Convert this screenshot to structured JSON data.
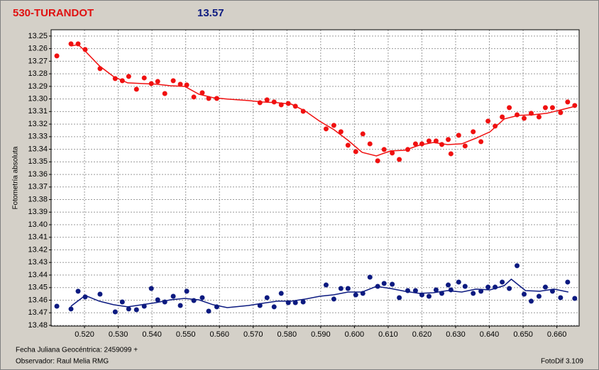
{
  "header": {
    "title": "530-TURANDOT",
    "magnitude": "13.57"
  },
  "chart_data": {
    "type": "scatter",
    "ylabel": "Fotometría absoluta",
    "xlabel": "Fecha Juliana Geocéntrica: 2459099 +",
    "xlim": [
      0.5101,
      0.6666
    ],
    "ylim": [
      13.245,
      13.48
    ],
    "y_inverted": true,
    "grid": true,
    "xticks": [
      {
        "value": 0.52,
        "label": "0.520"
      },
      {
        "value": 0.53,
        "label": "0.530"
      },
      {
        "value": 0.54,
        "label": "0.540"
      },
      {
        "value": 0.55,
        "label": "0.550"
      },
      {
        "value": 0.56,
        "label": "0.560"
      },
      {
        "value": 0.57,
        "label": "0.570"
      },
      {
        "value": 0.58,
        "label": "0.580"
      },
      {
        "value": 0.59,
        "label": "0.590"
      },
      {
        "value": 0.6,
        "label": "0.600"
      },
      {
        "value": 0.61,
        "label": "0.610"
      },
      {
        "value": 0.62,
        "label": "0.620"
      },
      {
        "value": 0.63,
        "label": "0.630"
      },
      {
        "value": 0.64,
        "label": "0.640"
      },
      {
        "value": 0.65,
        "label": "0.650"
      },
      {
        "value": 0.66,
        "label": "0.660"
      }
    ],
    "yticks": [
      13.25,
      13.26,
      13.27,
      13.28,
      13.29,
      {
        "value": 13.3,
        "label": "13.30"
      },
      13.31,
      13.32,
      13.33,
      13.34,
      13.35,
      13.36,
      13.37,
      13.38,
      13.39,
      {
        "value": 13.4,
        "label": "13.40"
      },
      13.41,
      13.42,
      13.43,
      13.44,
      13.45,
      13.46,
      13.47,
      13.48
    ],
    "x": [
      0.5118,
      0.516,
      0.5181,
      0.5202,
      0.5246,
      0.5291,
      0.5312,
      0.5331,
      0.5354,
      0.5377,
      0.5398,
      0.5417,
      0.5438,
      0.5463,
      0.5484,
      0.5503,
      0.5524,
      0.5549,
      0.5568,
      0.5592,
      0.572,
      0.5741,
      0.5762,
      0.5783,
      0.5804,
      0.5825,
      0.5848,
      0.5916,
      0.5939,
      0.596,
      0.5981,
      0.6004,
      0.6025,
      0.6046,
      0.6069,
      0.6088,
      0.6112,
      0.6133,
      0.6158,
      0.6181,
      0.62,
      0.6221,
      0.6242,
      0.6259,
      0.6278,
      0.6286,
      0.6309,
      0.6328,
      0.6352,
      0.6375,
      0.6396,
      0.6417,
      0.6438,
      0.6459,
      0.6482,
      0.6503,
      0.6524,
      0.6547,
      0.6566,
      0.6587,
      0.6611,
      0.6632,
      0.6653
    ],
    "series": [
      {
        "color": "#f01010",
        "values": [
          13.2658,
          13.2562,
          13.2562,
          13.2607,
          13.2759,
          13.2838,
          13.2855,
          13.2821,
          13.2923,
          13.2833,
          13.2878,
          13.2861,
          13.2957,
          13.2855,
          13.2883,
          13.2889,
          13.2985,
          13.2951,
          13.2996,
          13.2996,
          13.303,
          13.3007,
          13.3024,
          13.3047,
          13.3036,
          13.3058,
          13.3098,
          13.3238,
          13.321,
          13.3261,
          13.3368,
          13.3419,
          13.3278,
          13.3357,
          13.3492,
          13.3402,
          13.343,
          13.3481,
          13.3402,
          13.3357,
          13.3357,
          13.3334,
          13.3334,
          13.3362,
          13.3323,
          13.3436,
          13.3289,
          13.3374,
          13.3261,
          13.334,
          13.3176,
          13.3216,
          13.3143,
          13.3069,
          13.3126,
          13.3154,
          13.3114,
          13.3143,
          13.3069,
          13.3069,
          13.3109,
          13.3024,
          13.3052
        ]
      },
      {
        "color": "#0c1a80",
        "values": [
          13.4648,
          13.467,
          13.4529,
          13.4574,
          13.4552,
          13.4693,
          13.4614,
          13.467,
          13.4676,
          13.4648,
          13.4507,
          13.4597,
          13.4614,
          13.4569,
          13.4642,
          13.4529,
          13.4603,
          13.458,
          13.4687,
          13.4653,
          13.4642,
          13.458,
          13.4653,
          13.4546,
          13.462,
          13.462,
          13.4614,
          13.4479,
          13.4591,
          13.4507,
          13.4507,
          13.4558,
          13.4546,
          13.4417,
          13.449,
          13.4467,
          13.4473,
          13.458,
          13.4524,
          13.4524,
          13.4558,
          13.4569,
          13.4518,
          13.4546,
          13.4479,
          13.4518,
          13.4456,
          13.449,
          13.4546,
          13.4529,
          13.4496,
          13.4496,
          13.4456,
          13.4507,
          13.4326,
          13.4552,
          13.4608,
          13.4569,
          13.4496,
          13.4529,
          13.458,
          13.4456,
          13.4586
        ]
      }
    ],
    "trend_lines": [
      {
        "color": "#f01010",
        "x": [
          0.516,
          0.5181,
          0.5202,
          0.5244,
          0.5286,
          0.5328,
          0.5371,
          0.5413,
          0.5455,
          0.5497,
          0.5539,
          0.5581,
          0.5623,
          0.5686,
          0.5728,
          0.5771,
          0.5813,
          0.5855,
          0.5897,
          0.5939,
          0.5981,
          0.6023,
          0.6065,
          0.6107,
          0.6149,
          0.6192,
          0.6234,
          0.6276,
          0.6318,
          0.636,
          0.6402,
          0.6444,
          0.6486,
          0.6528,
          0.6571,
          0.6613,
          0.6655
        ],
        "values": [
          13.2579,
          13.2568,
          13.2619,
          13.2737,
          13.2822,
          13.2872,
          13.2878,
          13.2883,
          13.2895,
          13.29,
          13.2962,
          13.299,
          13.3001,
          13.3013,
          13.3024,
          13.303,
          13.3041,
          13.3098,
          13.3177,
          13.3244,
          13.3329,
          13.3425,
          13.3453,
          13.3413,
          13.3408,
          13.3368,
          13.3346,
          13.3363,
          13.3357,
          13.3312,
          13.3261,
          13.3159,
          13.3131,
          13.3126,
          13.3114,
          13.3086,
          13.3058
        ]
      },
      {
        "color": "#0c1a80",
        "x": [
          0.516,
          0.5202,
          0.5244,
          0.5286,
          0.5328,
          0.5371,
          0.5413,
          0.5455,
          0.5497,
          0.5539,
          0.5581,
          0.5623,
          0.5686,
          0.5728,
          0.5771,
          0.5813,
          0.5855,
          0.5897,
          0.5939,
          0.5981,
          0.6023,
          0.6065,
          0.6107,
          0.6149,
          0.6192,
          0.6234,
          0.6276,
          0.6318,
          0.636,
          0.6402,
          0.6444,
          0.6465,
          0.6507,
          0.6549,
          0.6592,
          0.6634
        ],
        "values": [
          13.4648,
          13.4563,
          13.4608,
          13.4636,
          13.4653,
          13.4636,
          13.4619,
          13.4597,
          13.4586,
          13.4597,
          13.4636,
          13.4659,
          13.4642,
          13.4625,
          13.4608,
          13.4608,
          13.4591,
          13.4569,
          13.4557,
          13.4535,
          13.4535,
          13.449,
          13.4507,
          13.4529,
          13.4546,
          13.4541,
          13.4524,
          13.4535,
          13.4512,
          13.4518,
          13.4484,
          13.4433,
          13.4524,
          13.4529,
          13.4512,
          13.4535
        ]
      }
    ]
  },
  "footer": {
    "observer": "Observador: Raul Melia RMG",
    "software": "FotoDif 3.109"
  }
}
